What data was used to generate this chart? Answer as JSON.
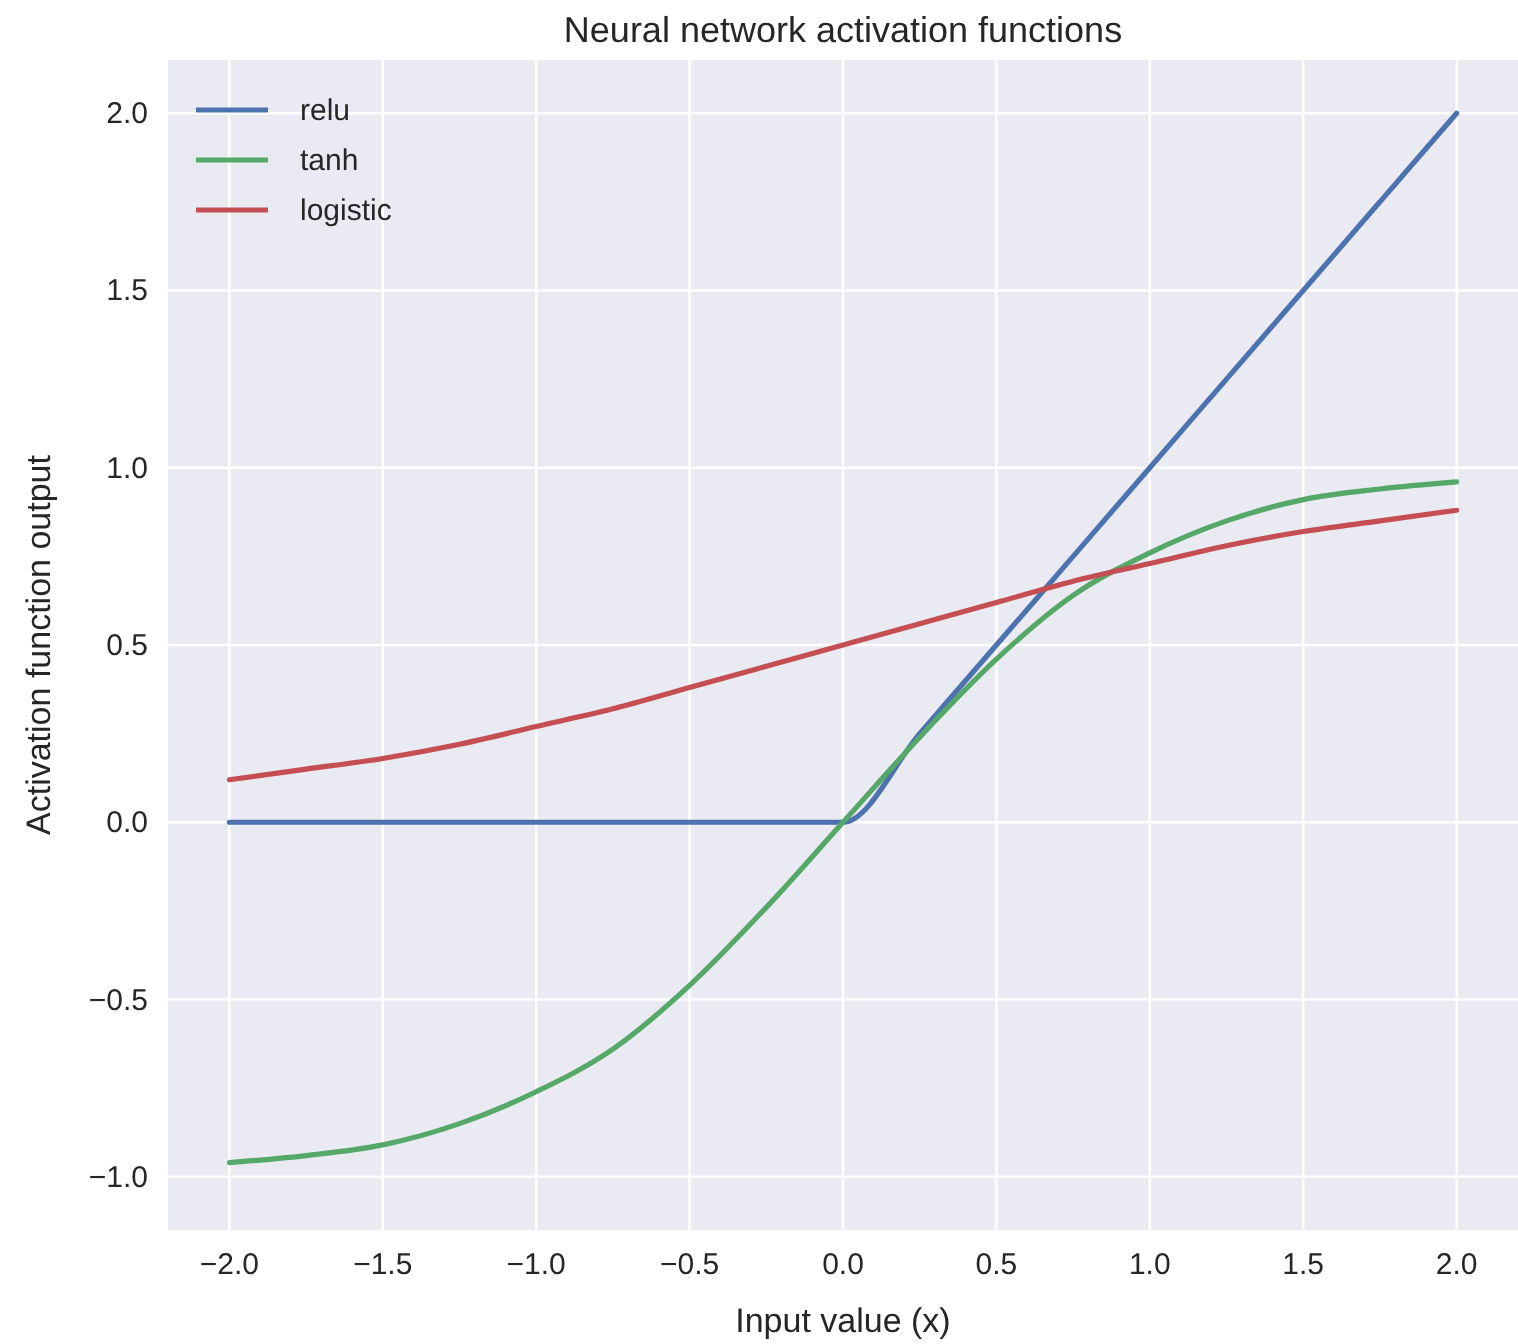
{
  "chart_data": {
    "type": "line",
    "title": "Neural network activation functions",
    "xlabel": "Input value (x)",
    "ylabel": "Activation function output",
    "x": [
      -2,
      -1.75,
      -1.5,
      -1.25,
      -1,
      -0.75,
      -0.5,
      -0.25,
      0,
      0.25,
      0.5,
      0.75,
      1,
      1.25,
      1.5,
      1.75,
      2
    ],
    "series": [
      {
        "name": "relu",
        "color": "#4c72b0",
        "values": [
          0,
          0,
          0,
          0,
          0,
          0,
          0,
          0,
          0,
          0.25,
          0.5,
          0.75,
          1,
          1.25,
          1.5,
          1.75,
          2
        ]
      },
      {
        "name": "tanh",
        "color": "#55a868",
        "values": [
          -0.96,
          -0.94,
          -0.91,
          -0.85,
          -0.76,
          -0.64,
          -0.46,
          -0.24,
          0,
          0.24,
          0.46,
          0.64,
          0.76,
          0.85,
          0.91,
          0.94,
          0.96
        ]
      },
      {
        "name": "logistic",
        "color": "#c44e52",
        "values": [
          0.12,
          0.15,
          0.18,
          0.22,
          0.27,
          0.32,
          0.38,
          0.44,
          0.5,
          0.56,
          0.62,
          0.68,
          0.73,
          0.78,
          0.82,
          0.85,
          0.88
        ]
      }
    ],
    "xlim": [
      -2.2,
      2.2
    ],
    "ylim": [
      -1.15,
      2.15
    ],
    "xticks": [
      {
        "value": -2,
        "label": "−2.0"
      },
      {
        "value": -1.5,
        "label": "−1.5"
      },
      {
        "value": -1,
        "label": "−1.0"
      },
      {
        "value": -0.5,
        "label": "−0.5"
      },
      {
        "value": 0,
        "label": "0.0"
      },
      {
        "value": 0.5,
        "label": "0.5"
      },
      {
        "value": 1,
        "label": "1.0"
      },
      {
        "value": 1.5,
        "label": "1.5"
      },
      {
        "value": 2,
        "label": "2.0"
      }
    ],
    "yticks": [
      {
        "value": -1,
        "label": "−1.0"
      },
      {
        "value": -0.5,
        "label": "−0.5"
      },
      {
        "value": 0,
        "label": "0.0"
      },
      {
        "value": 0.5,
        "label": "0.5"
      },
      {
        "value": 1,
        "label": "1.0"
      },
      {
        "value": 1.5,
        "label": "1.5"
      },
      {
        "value": 2,
        "label": "2.0"
      }
    ],
    "grid": true,
    "legend": "top left",
    "marker": "none",
    "line_style": "solid"
  }
}
